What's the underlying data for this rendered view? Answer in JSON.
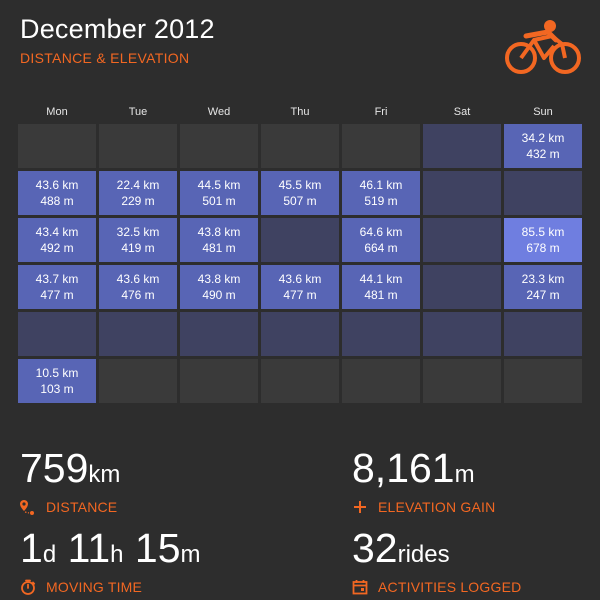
{
  "header": {
    "title": "December 2012",
    "subtitle": "DISTANCE & ELEVATION"
  },
  "logo": {
    "icon": "cyclist-icon",
    "color": "#f26722"
  },
  "calendar": {
    "day_names": [
      "Mon",
      "Tue",
      "Wed",
      "Thu",
      "Fri",
      "Sat",
      "Sun"
    ],
    "weeks": [
      [
        null,
        null,
        null,
        null,
        null,
        {
          "dist": "",
          "elev": ""
        },
        {
          "dist": "34.2 km",
          "elev": "432 m"
        }
      ],
      [
        {
          "dist": "43.6 km",
          "elev": "488 m"
        },
        {
          "dist": "22.4 km",
          "elev": "229 m"
        },
        {
          "dist": "44.5 km",
          "elev": "501 m"
        },
        {
          "dist": "45.5 km",
          "elev": "507 m"
        },
        {
          "dist": "46.1 km",
          "elev": "519 m"
        },
        {
          "dist": "",
          "elev": ""
        },
        {
          "dist": "",
          "elev": ""
        }
      ],
      [
        {
          "dist": "43.4 km",
          "elev": "492 m"
        },
        {
          "dist": "32.5 km",
          "elev": "419 m"
        },
        {
          "dist": "43.8 km",
          "elev": "481 m"
        },
        {
          "dist": "",
          "elev": ""
        },
        {
          "dist": "64.6 km",
          "elev": "664 m"
        },
        {
          "dist": "",
          "elev": ""
        },
        {
          "dist": "85.5 km",
          "elev": "678 m"
        }
      ],
      [
        {
          "dist": "43.7 km",
          "elev": "477 m"
        },
        {
          "dist": "43.6 km",
          "elev": "476 m"
        },
        {
          "dist": "43.8 km",
          "elev": "490 m"
        },
        {
          "dist": "43.6 km",
          "elev": "477 m"
        },
        {
          "dist": "44.1 km",
          "elev": "481 m"
        },
        {
          "dist": "",
          "elev": ""
        },
        {
          "dist": "23.3 km",
          "elev": "247 m"
        }
      ],
      [
        {
          "dist": "",
          "elev": ""
        },
        {
          "dist": "",
          "elev": ""
        },
        {
          "dist": "",
          "elev": ""
        },
        {
          "dist": "",
          "elev": ""
        },
        {
          "dist": "",
          "elev": ""
        },
        {
          "dist": "",
          "elev": ""
        },
        {
          "dist": "",
          "elev": ""
        }
      ],
      [
        {
          "dist": "10.5 km",
          "elev": "103 m"
        },
        null,
        null,
        null,
        null,
        null,
        null
      ]
    ]
  },
  "stats": {
    "distance": {
      "value": "759",
      "unit": "km",
      "label": "DISTANCE"
    },
    "elevation": {
      "value": "8,161",
      "unit": "m",
      "label": "ELEVATION GAIN"
    },
    "moving_time": {
      "days": "1",
      "d_unit": "d",
      "hours": "11",
      "h_unit": "h",
      "minutes": "15",
      "m_unit": "m",
      "label": "MOVING TIME"
    },
    "activities": {
      "value": "32",
      "unit": "rides",
      "label": "ACTIVITIES LOGGED"
    }
  },
  "colors": {
    "accent": "#f26722",
    "background": "#2d2d2d",
    "ride_cell": "#5865b5",
    "ride_cell_max": "#6f7ee0",
    "no_ride_cell": "#3f4261",
    "empty_cell": "#3a3a3a"
  }
}
